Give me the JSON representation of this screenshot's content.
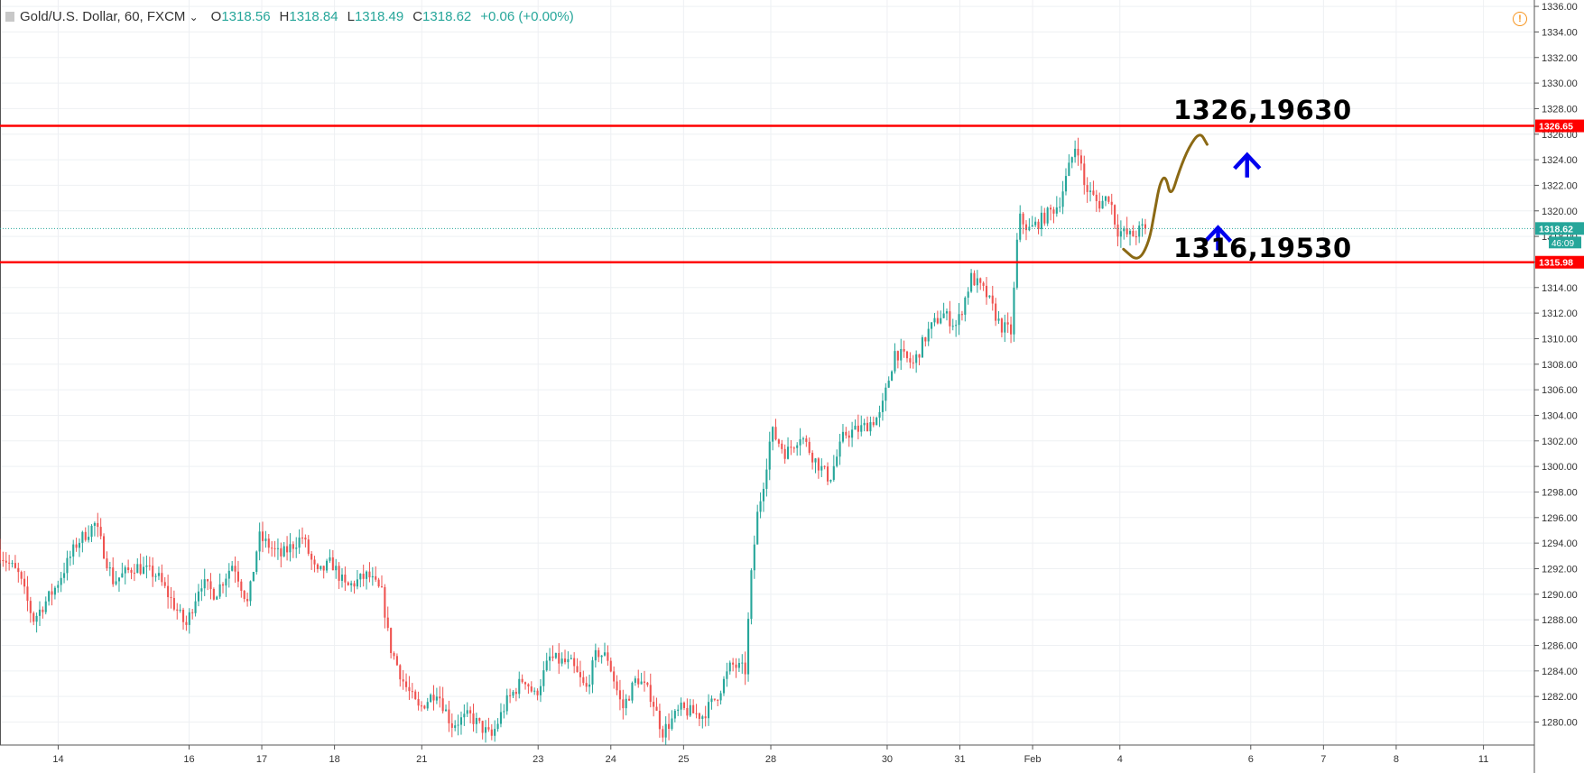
{
  "header": {
    "symbol": "Gold/U.S. Dollar, 60, FXCM",
    "chevron": "⌄",
    "open_label": "O",
    "open_value": "1318.56",
    "high_label": "H",
    "high_value": "1318.84",
    "low_label": "L",
    "low_value": "1318.49",
    "close_label": "C",
    "close_value": "1318.62",
    "change": "+0.06 (+0.00%)",
    "alert_glyph": "!"
  },
  "annotations": {
    "resistance_text": "1326,19630",
    "support_text": "1316,19530"
  },
  "colors": {
    "up": "#26a69a",
    "down": "#ef5350",
    "level_line": "#ff0000",
    "projection": "#8b6914",
    "arrow": "#0000ee",
    "grid": "#eef0f3",
    "axis_text": "#333333"
  },
  "icons": [
    "symbol-box-icon",
    "chevron-down-icon",
    "alert-icon",
    "arrow-up-icon"
  ],
  "chart_data": {
    "type": "candlestick",
    "title": "Gold/U.S. Dollar, 60, FXCM",
    "ylim": [
      1278.2,
      1336.5
    ],
    "y_ticks": [
      1280,
      1282,
      1284,
      1286,
      1288,
      1290,
      1292,
      1294,
      1296,
      1298,
      1300,
      1302,
      1304,
      1306,
      1308,
      1310,
      1312,
      1314,
      1316,
      1318,
      1320,
      1322,
      1324,
      1326,
      1328,
      1330,
      1332,
      1334,
      1336
    ],
    "y_tick_labels": [
      "1280.00",
      "1282.00",
      "1284.00",
      "1286.00",
      "1288.00",
      "1290.00",
      "1292.00",
      "1294.00",
      "1296.00",
      "1298.00",
      "1300.00",
      "1302.00",
      "1304.00",
      "1306.00",
      "1308.00",
      "1310.00",
      "1312.00",
      "1314.00",
      "1316.00",
      "1318.00",
      "1320.00",
      "1322.00",
      "1324.00",
      "1326.00",
      "1328.00",
      "1330.00",
      "1332.00",
      "1334.00",
      "1336.00"
    ],
    "x_domain": [
      -0.8,
      20.3
    ],
    "x_ticks": [
      {
        "t": 0,
        "label": "14"
      },
      {
        "t": 1.8,
        "label": "16"
      },
      {
        "t": 2.8,
        "label": "17"
      },
      {
        "t": 3.8,
        "label": "18"
      },
      {
        "t": 5,
        "label": "21"
      },
      {
        "t": 6.6,
        "label": "23"
      },
      {
        "t": 7.6,
        "label": "24"
      },
      {
        "t": 8.6,
        "label": "25"
      },
      {
        "t": 9.8,
        "label": "28"
      },
      {
        "t": 11.4,
        "label": "30"
      },
      {
        "t": 12.4,
        "label": "31"
      },
      {
        "t": 13.4,
        "label": "Feb"
      },
      {
        "t": 14.6,
        "label": "4"
      },
      {
        "t": 16.4,
        "label": "6"
      },
      {
        "t": 17.4,
        "label": "7"
      },
      {
        "t": 18.4,
        "label": "8"
      },
      {
        "t": 19.6,
        "label": "11"
      }
    ],
    "price_path": [
      [
        -0.8,
        1293.5
      ],
      [
        -0.5,
        1291.5
      ],
      [
        -0.3,
        1288.0
      ],
      [
        0.0,
        1290.5
      ],
      [
        0.3,
        1294.0
      ],
      [
        0.55,
        1295.5
      ],
      [
        0.8,
        1291.0
      ],
      [
        1.1,
        1292.2
      ],
      [
        1.4,
        1291.5
      ],
      [
        1.65,
        1289.0
      ],
      [
        1.8,
        1287.5
      ],
      [
        2.0,
        1291.0
      ],
      [
        2.2,
        1290.0
      ],
      [
        2.45,
        1292.5
      ],
      [
        2.65,
        1289.2
      ],
      [
        2.8,
        1294.5
      ],
      [
        3.1,
        1293.0
      ],
      [
        3.4,
        1294.5
      ],
      [
        3.6,
        1291.5
      ],
      [
        3.8,
        1292.5
      ],
      [
        4.0,
        1290.5
      ],
      [
        4.3,
        1291.5
      ],
      [
        4.5,
        1290.0
      ],
      [
        4.6,
        1286.0
      ],
      [
        4.8,
        1283.0
      ],
      [
        5.0,
        1281.0
      ],
      [
        5.25,
        1282.5
      ],
      [
        5.45,
        1279.8
      ],
      [
        5.7,
        1280.5
      ],
      [
        6.0,
        1278.8
      ],
      [
        6.2,
        1281.5
      ],
      [
        6.45,
        1283.5
      ],
      [
        6.6,
        1282.0
      ],
      [
        6.8,
        1285.0
      ],
      [
        7.1,
        1284.5
      ],
      [
        7.3,
        1282.5
      ],
      [
        7.45,
        1285.5
      ],
      [
        7.6,
        1285.0
      ],
      [
        7.8,
        1281.0
      ],
      [
        8.0,
        1283.5
      ],
      [
        8.2,
        1282.0
      ],
      [
        8.35,
        1279.2
      ],
      [
        8.6,
        1281.0
      ],
      [
        8.9,
        1280.5
      ],
      [
        9.1,
        1282.0
      ],
      [
        9.3,
        1284.5
      ],
      [
        9.5,
        1284.0
      ],
      [
        9.55,
        1290.0
      ],
      [
        9.65,
        1296.0
      ],
      [
        9.75,
        1299.0
      ],
      [
        9.85,
        1302.8
      ],
      [
        10.05,
        1301.0
      ],
      [
        10.25,
        1302.5
      ],
      [
        10.45,
        1300.5
      ],
      [
        10.65,
        1299.0
      ],
      [
        10.85,
        1302.5
      ],
      [
        11.1,
        1303.0
      ],
      [
        11.35,
        1304.0
      ],
      [
        11.55,
        1309.0
      ],
      [
        11.8,
        1308.0
      ],
      [
        12.0,
        1310.5
      ],
      [
        12.2,
        1312.0
      ],
      [
        12.4,
        1311.0
      ],
      [
        12.6,
        1314.8
      ],
      [
        12.8,
        1313.5
      ],
      [
        13.0,
        1311.0
      ],
      [
        13.15,
        1310.5
      ],
      [
        13.25,
        1319.5
      ],
      [
        13.4,
        1318.5
      ],
      [
        13.6,
        1319.5
      ],
      [
        13.8,
        1320.5
      ],
      [
        13.95,
        1323.5
      ],
      [
        14.05,
        1325.5
      ],
      [
        14.15,
        1322.0
      ],
      [
        14.35,
        1320.5
      ],
      [
        14.5,
        1321.2
      ],
      [
        14.6,
        1318.5
      ],
      [
        14.8,
        1318.0
      ],
      [
        14.95,
        1318.62
      ]
    ],
    "hlines": [
      {
        "value": 1326.65,
        "label": "1326.65"
      },
      {
        "value": 1315.98,
        "label": "1315.98"
      }
    ],
    "last_price": {
      "value": 1318.62,
      "label": "1318.62",
      "countdown": "46:09"
    },
    "projection": [
      [
        14.65,
        1317.0
      ],
      [
        14.85,
        1316.0
      ],
      [
        15.0,
        1317.5
      ],
      [
        15.08,
        1320.0
      ],
      [
        15.15,
        1322.2
      ],
      [
        15.23,
        1322.8
      ],
      [
        15.3,
        1321.0
      ],
      [
        15.42,
        1323.2
      ],
      [
        15.55,
        1325.0
      ],
      [
        15.7,
        1326.2
      ],
      [
        15.8,
        1325.2
      ]
    ],
    "arrows": [
      {
        "t": 15.95,
        "y": 1317.9
      },
      {
        "t": 16.35,
        "y": 1323.6
      }
    ]
  }
}
